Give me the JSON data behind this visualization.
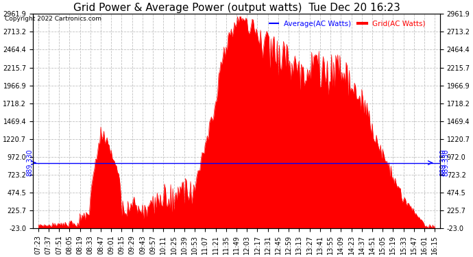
{
  "title": "Grid Power & Average Power (output watts)  Tue Dec 20 16:23",
  "copyright": "Copyright 2022 Cartronics.com",
  "y_ticks": [
    -23.0,
    225.7,
    474.5,
    723.2,
    972.0,
    1220.7,
    1469.4,
    1718.2,
    1966.9,
    2215.7,
    2464.4,
    2713.2,
    2961.9
  ],
  "ylim": [
    -23.0,
    2961.9
  ],
  "average_line_value": 889.33,
  "average_label": "889.330",
  "legend_avg": "Average(AC Watts)",
  "legend_grid": "Grid(AC Watts)",
  "legend_avg_color": "blue",
  "legend_grid_color": "red",
  "background_color": "#ffffff",
  "grid_color": "#c0c0c0",
  "x_labels": [
    "07:23",
    "07:37",
    "07:51",
    "08:05",
    "08:19",
    "08:33",
    "08:47",
    "09:01",
    "09:15",
    "09:29",
    "09:43",
    "09:57",
    "10:11",
    "10:25",
    "10:39",
    "10:53",
    "11:07",
    "11:21",
    "11:35",
    "11:49",
    "12:03",
    "12:17",
    "12:31",
    "12:45",
    "12:59",
    "13:13",
    "13:27",
    "13:41",
    "13:55",
    "14:09",
    "14:23",
    "14:37",
    "14:51",
    "15:05",
    "15:19",
    "15:33",
    "15:47",
    "16:01",
    "16:15"
  ],
  "title_fontsize": 11,
  "axis_fontsize": 7,
  "copyright_fontsize": 6.5,
  "figsize": [
    6.9,
    3.75
  ],
  "dpi": 100
}
